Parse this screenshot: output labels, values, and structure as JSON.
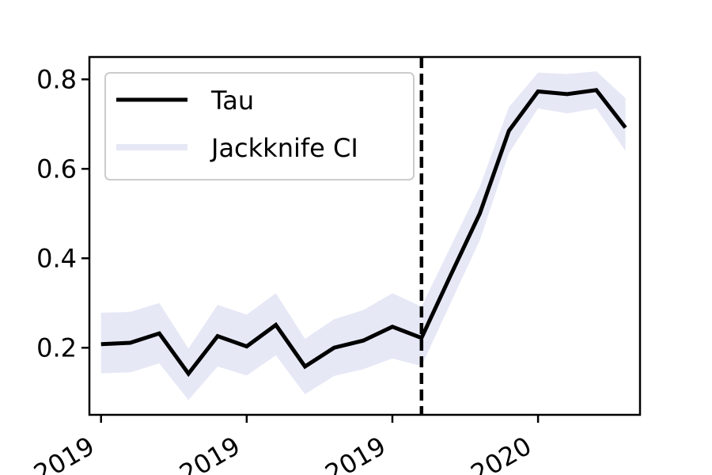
{
  "chart_data": {
    "type": "line",
    "x": [
      0,
      1,
      2,
      3,
      4,
      5,
      6,
      7,
      8,
      9,
      10,
      11,
      12,
      13,
      14,
      15,
      16,
      17,
      18
    ],
    "series": [
      {
        "name": "Tau",
        "color": "#000000",
        "values": [
          0.208,
          0.211,
          0.232,
          0.142,
          0.226,
          0.203,
          0.251,
          0.158,
          0.2,
          0.216,
          0.247,
          0.222,
          0.362,
          0.5,
          0.685,
          0.773,
          0.767,
          0.776,
          0.692
        ]
      },
      {
        "name": "Jackknife CI",
        "type": "band",
        "color": "#e6e8f6",
        "lower": [
          0.143,
          0.145,
          0.165,
          0.083,
          0.158,
          0.138,
          0.183,
          0.096,
          0.137,
          0.152,
          0.176,
          0.159,
          0.3,
          0.44,
          0.635,
          0.735,
          0.724,
          0.735,
          0.64
        ],
        "upper": [
          0.278,
          0.28,
          0.3,
          0.198,
          0.296,
          0.274,
          0.322,
          0.22,
          0.264,
          0.284,
          0.322,
          0.292,
          0.426,
          0.56,
          0.738,
          0.815,
          0.812,
          0.818,
          0.758
        ]
      }
    ],
    "ylim": [
      0.05,
      0.85
    ],
    "xlim": [
      -0.4,
      18.5
    ],
    "yticks": [
      0.2,
      0.4,
      0.6,
      0.8
    ],
    "ytick_labels": [
      "0.2",
      "0.4",
      "0.6",
      "0.8"
    ],
    "xticks": [
      0,
      5,
      10,
      15
    ],
    "xtick_labels": [
      "2019",
      "2019",
      "2019",
      "2020"
    ],
    "vline": {
      "x": 11,
      "style": "dashed",
      "color": "#000000"
    },
    "legend": {
      "placement": "top-left",
      "entries": [
        "Tau",
        "Jackknife CI"
      ]
    },
    "grid": false,
    "title": "",
    "xlabel": "",
    "ylabel": ""
  }
}
